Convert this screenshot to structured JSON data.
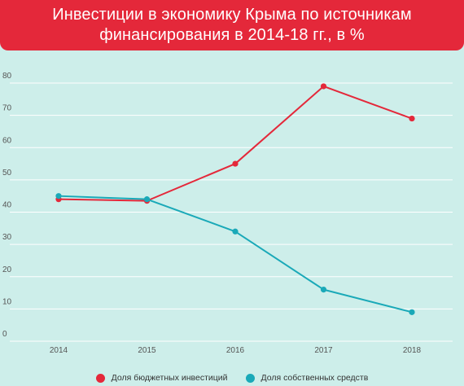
{
  "title_lines": [
    "Инвестиции в экономику Крыма по источникам",
    "финансирования в 2014-18 гг., в %"
  ],
  "colors": {
    "background": "#cdeeea",
    "banner": "#e4283a",
    "grid": "#ffffff",
    "axis_text": "#555555"
  },
  "chart_data": {
    "type": "line",
    "title": "Инвестиции в экономику Крыма по источникам финансирования в 2014-18 гг., в %",
    "x": [
      "2014",
      "2015",
      "2016",
      "2017",
      "2018"
    ],
    "y_ticks": [
      "0",
      "10",
      "20",
      "30",
      "40",
      "50",
      "60",
      "70",
      "80"
    ],
    "ylim": [
      0,
      80
    ],
    "grid": true,
    "legend_position": "bottom",
    "series": [
      {
        "name": "Доля бюджетных инвестиций",
        "color": "#e4283a",
        "values": [
          44,
          43.5,
          55,
          79,
          69
        ]
      },
      {
        "name": "Доля собственных средств",
        "color": "#1aa9b8",
        "values": [
          45,
          44,
          34,
          16,
          9
        ]
      }
    ]
  }
}
